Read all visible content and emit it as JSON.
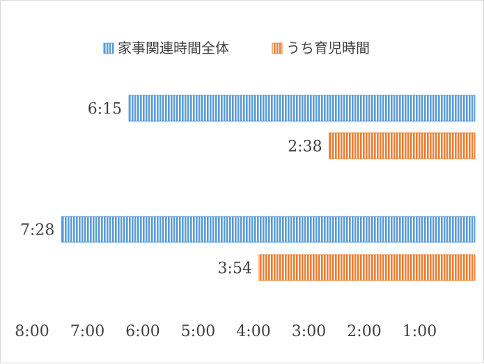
{
  "chart_data": {
    "type": "bar",
    "orientation": "horizontal",
    "x_axis": "reversed",
    "xlim_minutes": [
      0,
      500
    ],
    "x_ticks": [
      "8:00",
      "7:00",
      "6:00",
      "5:00",
      "4:00",
      "3:00",
      "2:00",
      "1:00"
    ],
    "legend_position": "top",
    "groups": 2,
    "series": [
      {
        "name": "家事関連時間全体",
        "color": "#5b9bd5",
        "pattern": "vertical-stripes",
        "values_minutes": [
          375,
          448
        ],
        "labels": [
          "6:15",
          "7:28"
        ]
      },
      {
        "name": "うち育児時間",
        "color": "#ed7d31",
        "pattern": "vertical-stripes",
        "values_minutes": [
          158,
          234
        ],
        "labels": [
          "2:38",
          "3:54"
        ]
      }
    ]
  }
}
